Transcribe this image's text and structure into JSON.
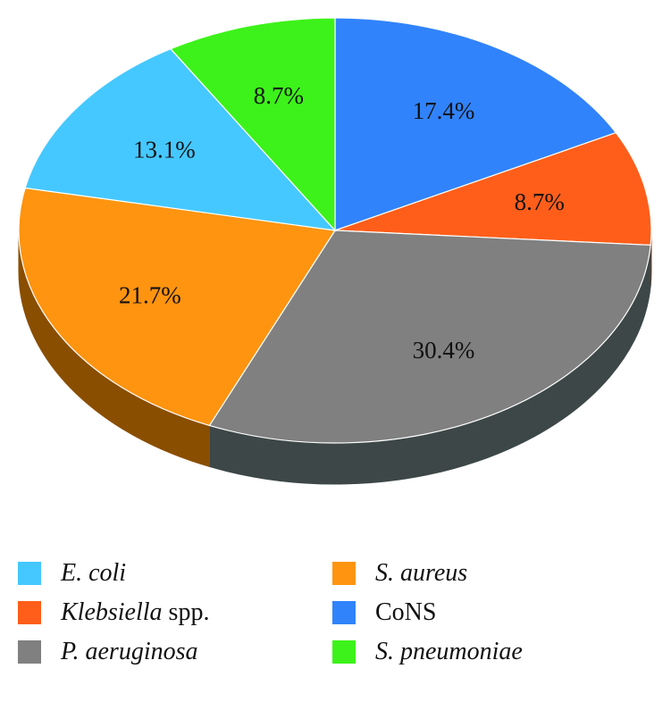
{
  "chart_data": {
    "type": "pie",
    "style": "3d",
    "title": "",
    "slices": [
      {
        "label": "CoNS",
        "value": 17.4,
        "value_label": "17.4%",
        "color": "#3183FB",
        "side_color": "#1D4E96"
      },
      {
        "label": "Klebsiella spp.",
        "value": 8.7,
        "value_label": "8.7%",
        "color": "#FF5E1A",
        "side_color": "#96370F"
      },
      {
        "label": "P. aeruginosa",
        "value": 30.4,
        "value_label": "30.4%",
        "color": "#808080",
        "side_color": "#3D4747"
      },
      {
        "label": "S. aureus",
        "value": 21.7,
        "value_label": "21.7%",
        "color": "#FF9410",
        "side_color": "#8A4E00"
      },
      {
        "label": "E. coli",
        "value": 13.1,
        "value_label": "13.1%",
        "color": "#45C8FF",
        "side_color": "#1F6E8C"
      },
      {
        "label": "S. pneumoniae",
        "value": 8.7,
        "value_label": "8.7%",
        "color": "#3DF21A",
        "side_color": "#1E7A0D"
      }
    ],
    "legend": {
      "placement": "bottom",
      "entries": [
        {
          "italic": "E. coli",
          "plain": "",
          "color": "#45C8FF"
        },
        {
          "italic": "S. aureus",
          "plain": "",
          "color": "#FF9410"
        },
        {
          "italic": "Klebsiella",
          "plain": " spp.",
          "color": "#FF5E1A"
        },
        {
          "italic": "",
          "plain": "CoNS",
          "color": "#3183FB"
        },
        {
          "italic": "P. aeruginosa",
          "plain": "",
          "color": "#808080"
        },
        {
          "italic": "S. pneumoniae",
          "plain": "",
          "color": "#3DF21A"
        }
      ]
    }
  }
}
